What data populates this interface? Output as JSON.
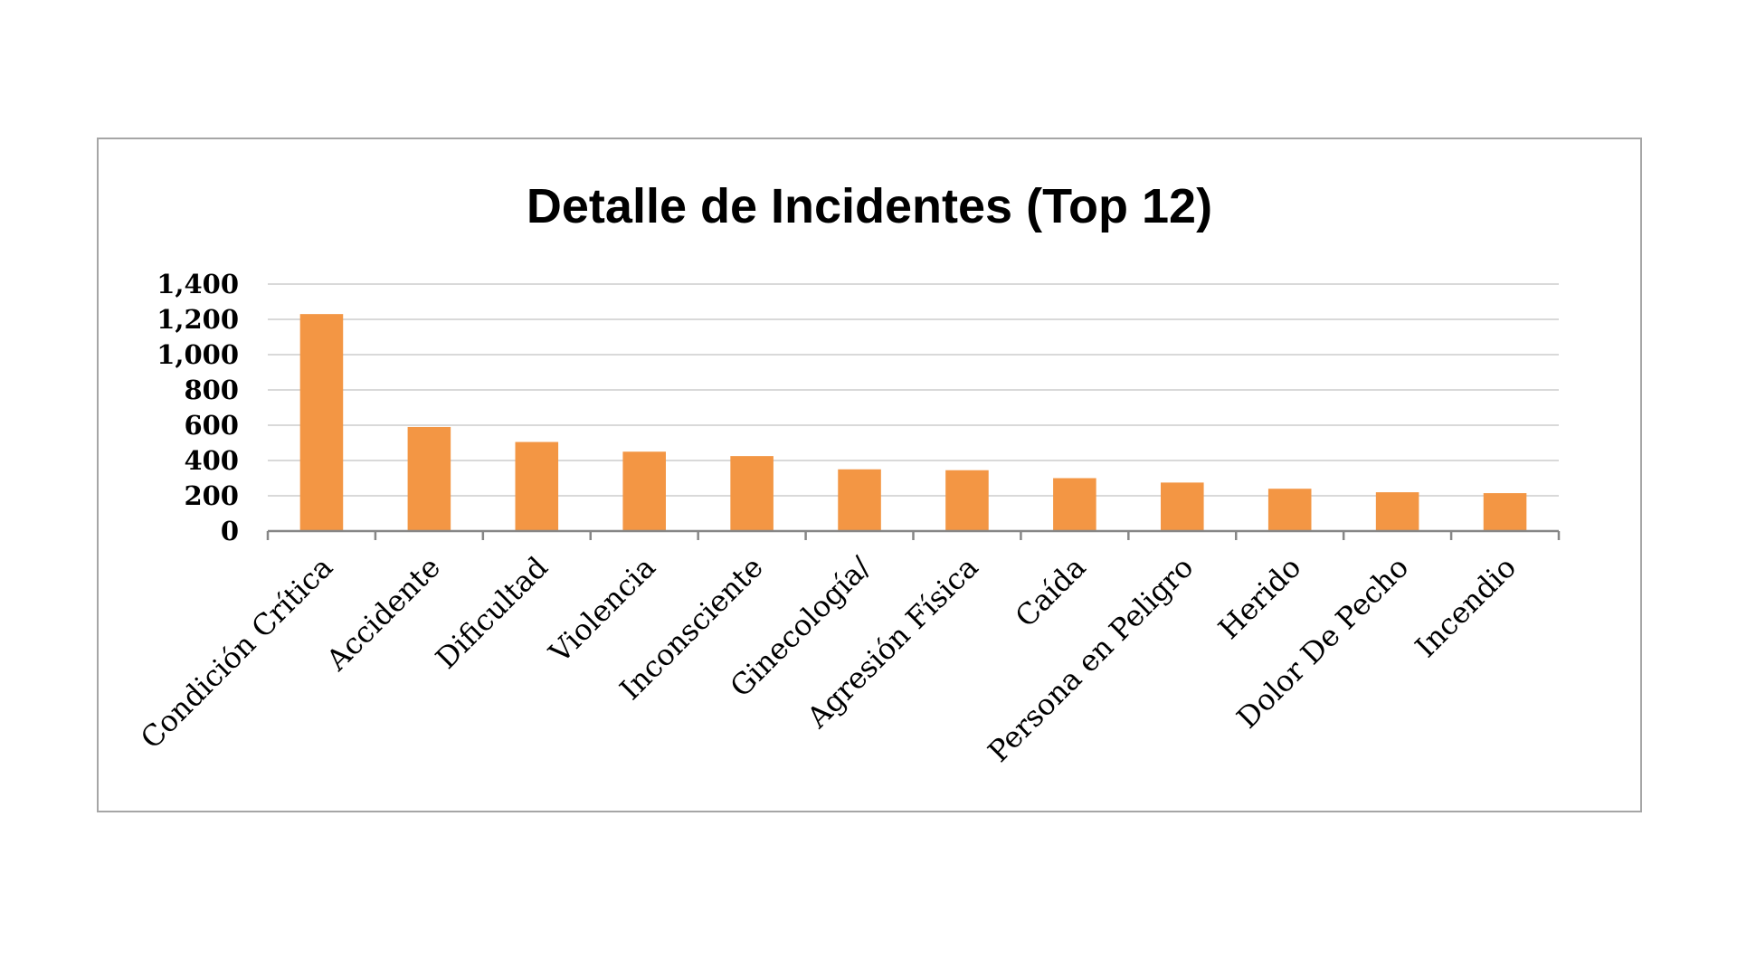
{
  "chart_data": {
    "type": "bar",
    "title": "Detalle de Incidentes (Top 12)",
    "xlabel": "",
    "ylabel": "",
    "categories": [
      "Condición Crítica",
      "Accidente",
      "Dificultad",
      "Violencia",
      "Inconsciente",
      "Ginecología/",
      "Agresión Física",
      "Caída",
      "Persona en Peligro",
      "Herido",
      "Dolor De Pecho",
      "Incendio"
    ],
    "values": [
      1230,
      590,
      505,
      450,
      425,
      350,
      345,
      300,
      275,
      240,
      220,
      215
    ],
    "ylim": [
      0,
      1400
    ],
    "yticks": [
      0,
      200,
      400,
      600,
      800,
      1000,
      1200,
      1400
    ],
    "ytick_labels": [
      "0",
      "200",
      "400",
      "600",
      "800",
      "1,000",
      "1,200",
      "1,400"
    ],
    "grid": true,
    "legend": "none",
    "colors": {
      "bar": "#f39644",
      "grid": "#d9d9d9",
      "axis": "#868686",
      "frame": "#a6a6a6"
    }
  }
}
